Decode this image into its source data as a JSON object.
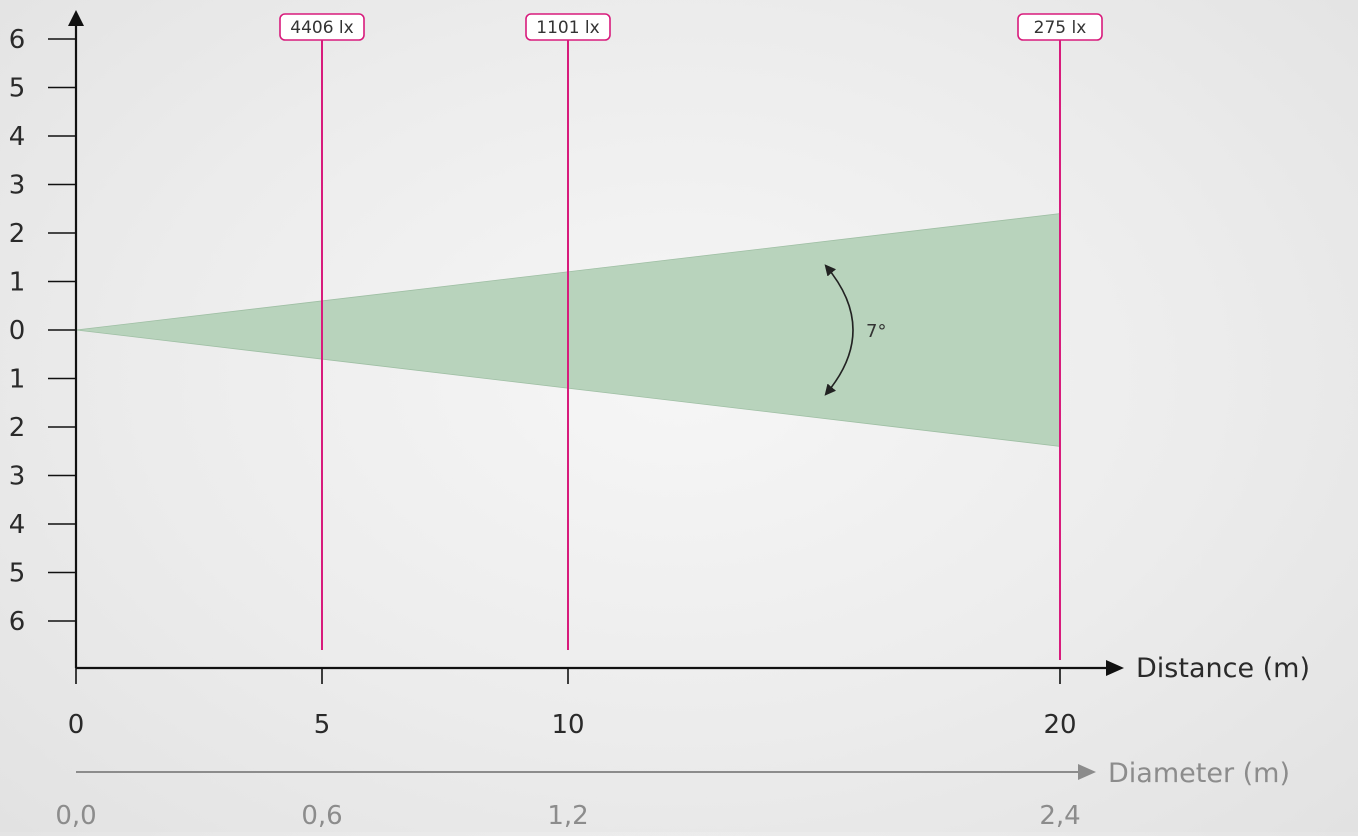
{
  "chart_data": {
    "type": "beam-diagram",
    "beam_angle_label": "7°",
    "x_axis": {
      "title": "Distance (m)",
      "ticks": [
        {
          "value": 0,
          "label": "0"
        },
        {
          "value": 5,
          "label": "5"
        },
        {
          "value": 10,
          "label": "10"
        },
        {
          "value": 20,
          "label": "20"
        }
      ],
      "range": [
        0,
        20
      ]
    },
    "diameter_axis": {
      "title": "Diameter (m)",
      "ticks": [
        {
          "distance": 0,
          "label": "0,0"
        },
        {
          "distance": 5,
          "label": "0,6"
        },
        {
          "distance": 10,
          "label": "1,2"
        },
        {
          "distance": 20,
          "label": "2,4"
        }
      ]
    },
    "y_axis": {
      "labels": [
        "6",
        "5",
        "4",
        "3",
        "2",
        "1",
        "0",
        "1",
        "2",
        "3",
        "4",
        "5",
        "6"
      ],
      "range": [
        -6,
        6
      ]
    },
    "illuminance": [
      {
        "distance": 5,
        "label": "4406 lx"
      },
      {
        "distance": 10,
        "label": "1101 lx"
      },
      {
        "distance": 20,
        "label": "275 lx"
      }
    ],
    "beam": {
      "end_distance": 20,
      "half_height_at_end": 2.4
    },
    "colors": {
      "beam": "#b8d3bc",
      "marker_line": "#d81b7c",
      "axis": "#111111",
      "diameter_axis": "#8c8c8c"
    }
  }
}
